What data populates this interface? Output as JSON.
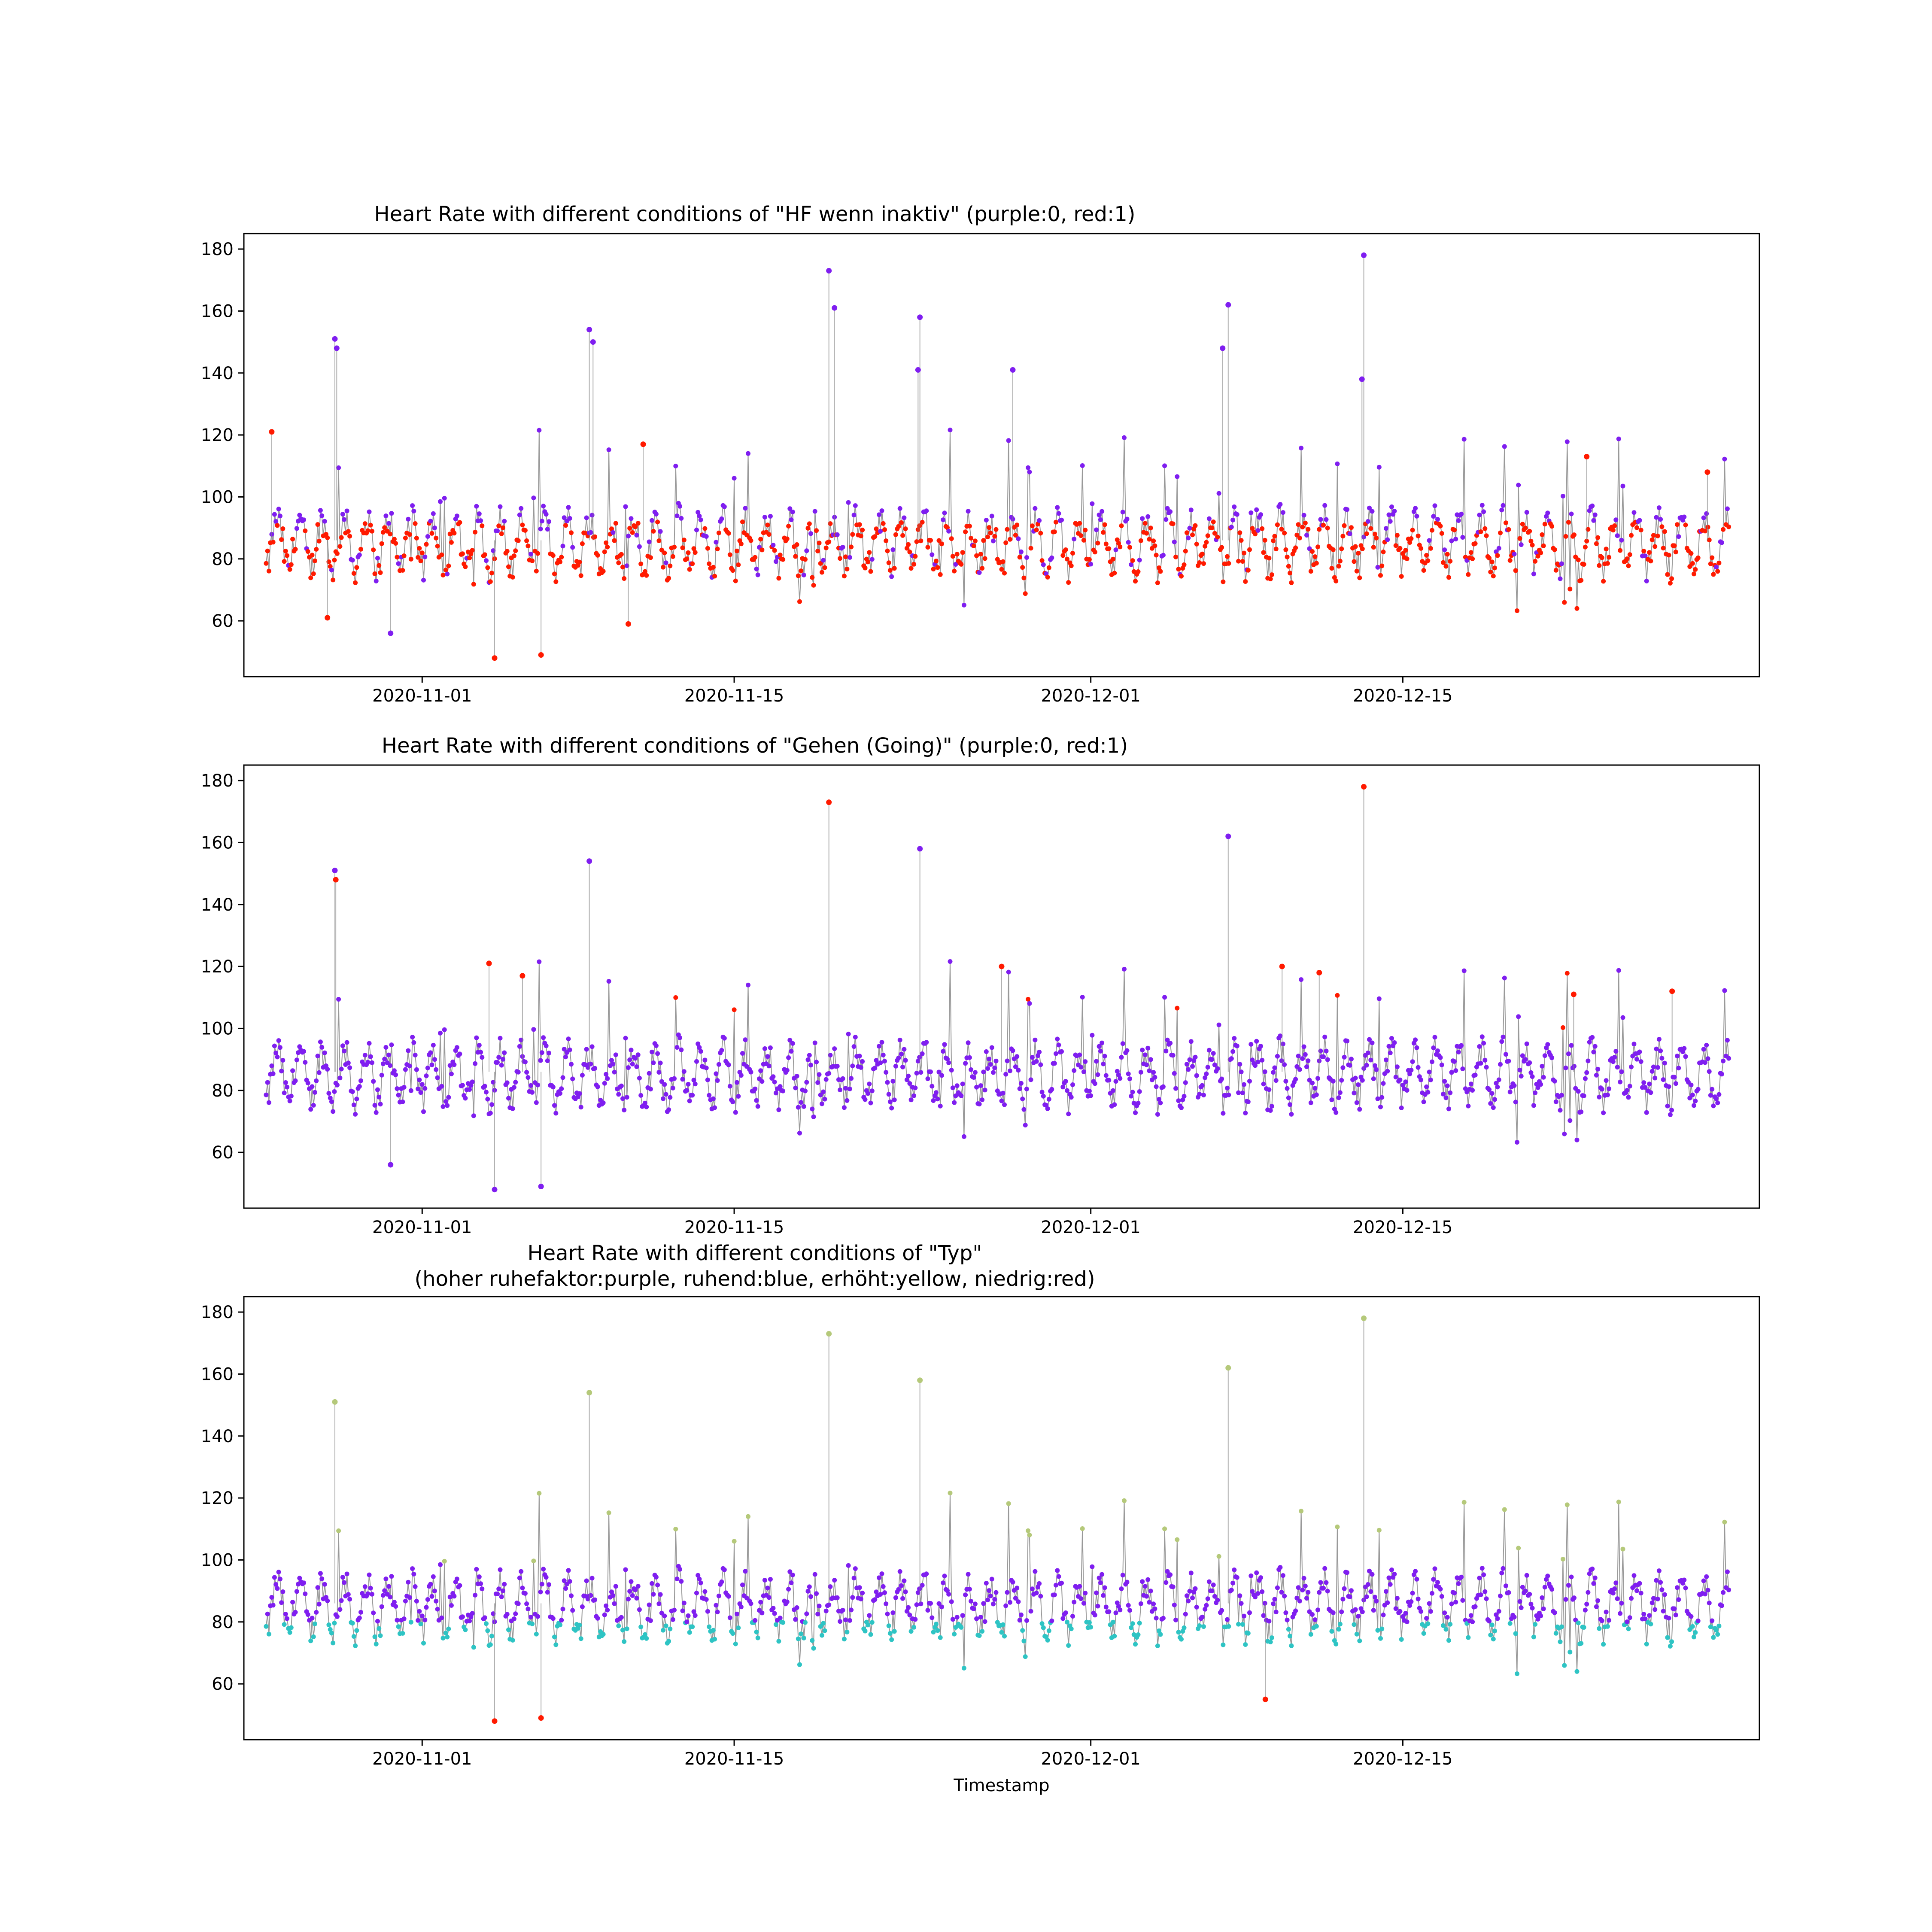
{
  "chart_data": [
    {
      "type": "scatter",
      "title": "Heart Rate with different conditions of \"HF wenn inaktiv\" (purple:0, red:1)",
      "xlabel": "",
      "ylabel": "",
      "x_range": [
        "2020-10-24",
        "2020-12-31"
      ],
      "ylim": [
        42,
        185
      ],
      "x_ticks": [
        "2020-11-01",
        "2020-11-15",
        "2020-12-01",
        "2020-12-15"
      ],
      "y_ticks": [
        60,
        80,
        100,
        120,
        140,
        160,
        180
      ],
      "line_color": "#808080",
      "legend": [
        {
          "value": "0",
          "color": "#7f1ef0"
        },
        {
          "value": "1",
          "color": "#ff1a00"
        }
      ],
      "series": [
        {
          "name": "0 (purple)",
          "color": "#7f1ef0",
          "points": [
            [
              "2020-10-28 02:00",
              151
            ],
            [
              "2020-10-28 04:00",
              148
            ],
            [
              "2020-11-08 12:00",
              154
            ],
            [
              "2020-11-08 16:00",
              150
            ],
            [
              "2020-11-19 06:00",
              173
            ],
            [
              "2020-11-19 12:00",
              161
            ],
            [
              "2020-11-23 08:00",
              158
            ],
            [
              "2020-11-23 06:00",
              141
            ],
            [
              "2020-11-27 12:00",
              141
            ],
            [
              "2020-12-07 04:00",
              162
            ],
            [
              "2020-12-06 22:00",
              148
            ],
            [
              "2020-12-13 06:00",
              178
            ],
            [
              "2020-12-13 04:00",
              138
            ],
            [
              "2020-10-30 14:00",
              56
            ]
          ]
        },
        {
          "name": "1 (red)",
          "color": "#ff1a00",
          "points": [
            [
              "2020-11-04 06:00",
              48
            ],
            [
              "2020-11-06 08:00",
              49
            ],
            [
              "2020-10-27 18:00",
              61
            ],
            [
              "2020-11-10 06:00",
              59
            ],
            [
              "2020-10-25 06:00",
              121
            ],
            [
              "2020-11-10 22:00",
              117
            ],
            [
              "2020-12-23 06:00",
              113
            ],
            [
              "2020-12-28 16:00",
              108
            ]
          ]
        }
      ]
    },
    {
      "type": "scatter",
      "title": "Heart Rate with different conditions of \"Gehen (Going)\" (purple:0, red:1)",
      "xlabel": "",
      "ylabel": "",
      "x_range": [
        "2020-10-24",
        "2020-12-31"
      ],
      "ylim": [
        42,
        185
      ],
      "x_ticks": [
        "2020-11-01",
        "2020-11-15",
        "2020-12-01",
        "2020-12-15"
      ],
      "y_ticks": [
        60,
        80,
        100,
        120,
        140,
        160,
        180
      ],
      "line_color": "#808080",
      "legend": [
        {
          "value": "0",
          "color": "#7f1ef0"
        },
        {
          "value": "1",
          "color": "#ff1a00"
        }
      ],
      "series": [
        {
          "name": "0 (purple)",
          "color": "#7f1ef0",
          "points": [
            [
              "2020-10-28 02:00",
              151
            ],
            [
              "2020-11-08 12:00",
              154
            ],
            [
              "2020-11-23 08:00",
              158
            ],
            [
              "2020-12-07 04:00",
              162
            ],
            [
              "2020-11-04 06:00",
              48
            ],
            [
              "2020-11-06 08:00",
              49
            ],
            [
              "2020-10-30 14:00",
              56
            ]
          ]
        },
        {
          "name": "1 (red)",
          "color": "#ff1a00",
          "points": [
            [
              "2020-11-19 06:00",
              173
            ],
            [
              "2020-12-13 06:00",
              178
            ],
            [
              "2020-10-28 03:00",
              148
            ],
            [
              "2020-11-04 00:00",
              121
            ],
            [
              "2020-11-05 12:00",
              117
            ],
            [
              "2020-11-27 00:00",
              120
            ],
            [
              "2020-12-09 14:00",
              120
            ],
            [
              "2020-12-11 06:00",
              118
            ],
            [
              "2020-12-22 16:00",
              111
            ],
            [
              "2020-12-27 02:00",
              112
            ]
          ]
        }
      ]
    },
    {
      "type": "scatter",
      "title": "Heart Rate with different conditions of \"Typ\"",
      "subtitle": "(hoher ruhefaktor:purple, ruhend:blue, erhöht:yellow, niedrig:red)",
      "xlabel": "Timestamp",
      "ylabel": "",
      "x_range": [
        "2020-10-24",
        "2020-12-31"
      ],
      "ylim": [
        42,
        185
      ],
      "x_ticks": [
        "2020-11-01",
        "2020-11-15",
        "2020-12-01",
        "2020-12-15"
      ],
      "y_ticks": [
        60,
        80,
        100,
        120,
        140,
        160,
        180
      ],
      "line_color": "#808080",
      "legend": [
        {
          "value": "hoher ruhefaktor",
          "color": "#7f1ef0"
        },
        {
          "value": "ruhend",
          "color": "#2ec4c4"
        },
        {
          "value": "erhöht",
          "color": "#b5c97a"
        },
        {
          "value": "niedrig",
          "color": "#ff1a00"
        }
      ],
      "series": [
        {
          "name": "hoher ruhefaktor (purple)",
          "color": "#7f1ef0",
          "range": [
            80,
            100
          ]
        },
        {
          "name": "ruhend (blue)",
          "color": "#2ec4c4",
          "range": [
            56,
            80
          ]
        },
        {
          "name": "erhöht (yellow)",
          "color": "#b5c97a",
          "points": [
            [
              "2020-11-19 06:00",
              173
            ],
            [
              "2020-12-13 06:00",
              178
            ],
            [
              "2020-12-07 04:00",
              162
            ],
            [
              "2020-11-23 08:00",
              158
            ],
            [
              "2020-11-08 12:00",
              154
            ],
            [
              "2020-10-28 02:00",
              151
            ]
          ]
        },
        {
          "name": "niedrig (red)",
          "color": "#ff1a00",
          "points": [
            [
              "2020-11-04 06:00",
              48
            ],
            [
              "2020-11-06 08:00",
              49
            ],
            [
              "2020-12-08 20:00",
              55
            ]
          ]
        }
      ]
    }
  ]
}
